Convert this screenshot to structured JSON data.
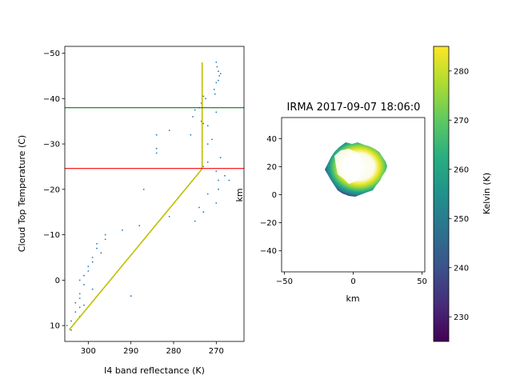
{
  "chart_data": [
    {
      "type": "scatter",
      "xlabel": "I4 band reflectance (K)",
      "ylabel": "Cloud Top Temperature (C)",
      "xlim": [
        305.5,
        263.5
      ],
      "ylim": [
        13.5,
        -51.5
      ],
      "xticks": [
        300,
        290,
        280,
        270
      ],
      "yticks": [
        -50,
        -40,
        -30,
        -20,
        -10,
        0,
        10
      ],
      "grid": false,
      "series": [
        {
          "role": "scatter",
          "color": "#1f77b4",
          "points": [
            [
              270,
              -48
            ],
            [
              269.8,
              -47
            ],
            [
              269.5,
              -46
            ],
            [
              269,
              -45.5
            ],
            [
              269.3,
              -45
            ],
            [
              269.5,
              -44
            ],
            [
              270,
              -43.5
            ],
            [
              270.5,
              -42
            ],
            [
              270.3,
              -41
            ],
            [
              273,
              -40.5
            ],
            [
              272.5,
              -40
            ],
            [
              273.5,
              -39
            ],
            [
              274,
              -38
            ],
            [
              275,
              -37.5
            ],
            [
              275.5,
              -36
            ],
            [
              273,
              -34.5
            ],
            [
              273.5,
              -35
            ],
            [
              272,
              -34
            ],
            [
              276,
              -32
            ],
            [
              270,
              -37
            ],
            [
              284,
              -32
            ],
            [
              281,
              -33
            ],
            [
              284,
              -29
            ],
            [
              284,
              -28
            ],
            [
              272,
              -30
            ],
            [
              271,
              -31
            ],
            [
              269,
              -27
            ],
            [
              272,
              -26
            ],
            [
              273,
              -25
            ],
            [
              270,
              -24
            ],
            [
              268,
              -23
            ],
            [
              267,
              -22
            ],
            [
              269.5,
              -22
            ],
            [
              269.5,
              -20
            ],
            [
              272,
              -19
            ],
            [
              270,
              -17
            ],
            [
              274,
              -16
            ],
            [
              273,
              -15
            ],
            [
              275,
              -13
            ],
            [
              279,
              -18
            ],
            [
              287,
              -20
            ],
            [
              281,
              -14
            ],
            [
              288,
              -12
            ],
            [
              292,
              -11
            ],
            [
              296,
              -10
            ],
            [
              296,
              -9
            ],
            [
              298,
              -8
            ],
            [
              298,
              -7
            ],
            [
              297,
              -6
            ],
            [
              299,
              -5
            ],
            [
              299,
              -4
            ],
            [
              300,
              -3
            ],
            [
              300,
              -2
            ],
            [
              301,
              -1
            ],
            [
              302,
              0
            ],
            [
              301,
              1
            ],
            [
              299,
              2
            ],
            [
              302,
              3
            ],
            [
              302,
              4
            ],
            [
              303,
              5
            ],
            [
              301,
              5.5
            ],
            [
              302,
              6
            ],
            [
              303,
              7
            ],
            [
              302,
              8
            ],
            [
              304,
              9
            ],
            [
              305,
              10
            ],
            [
              304,
              11
            ],
            [
              290,
              3.5
            ]
          ]
        },
        {
          "role": "line",
          "color": "#bfbf00",
          "points": [
            [
              304.5,
              11
            ],
            [
              273.5,
              -24.3
            ],
            [
              273.3,
              -25
            ],
            [
              273.3,
              -48
            ]
          ]
        },
        {
          "role": "hline",
          "color": "#008000",
          "y": -38
        },
        {
          "role": "hline",
          "color": "#ff0000",
          "y": -24.6
        }
      ]
    },
    {
      "type": "heatmap",
      "title": "IRMA 2017-09-07 18:06:0",
      "xlabel": "km",
      "ylabel": "km",
      "xlim": [
        -52,
        52
      ],
      "ylim": [
        -55,
        55
      ],
      "xticks": [
        -50,
        0,
        50
      ],
      "yticks": [
        -40,
        -20,
        0,
        20,
        40
      ],
      "colormap": "viridis",
      "colorbar": {
        "label": "Kelvin (K)",
        "range": [
          225,
          285
        ],
        "ticks": [
          230,
          240,
          250,
          260,
          270,
          280
        ]
      }
    }
  ]
}
